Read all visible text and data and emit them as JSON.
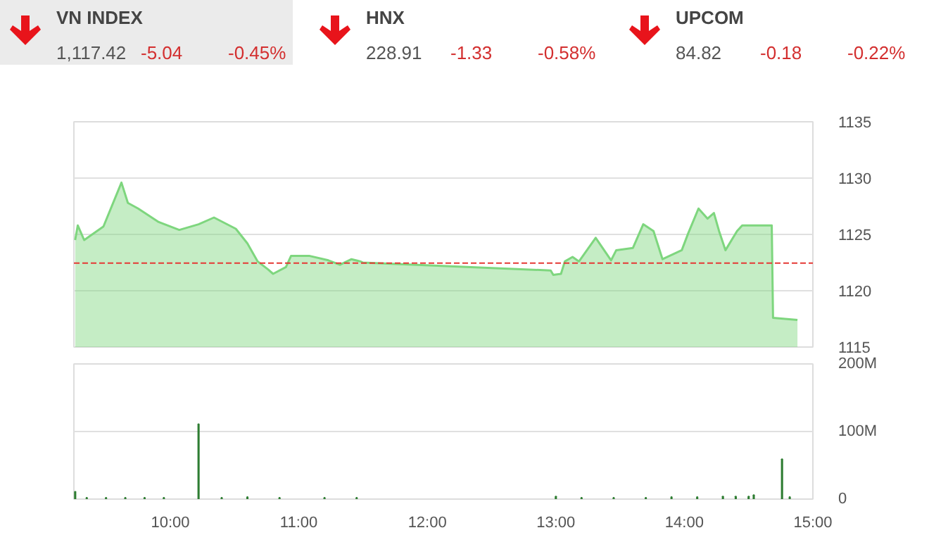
{
  "chart_data": [
    {
      "type": "other",
      "title": "VN INDEX",
      "annotations": [
        "1,117.42",
        "-5.04",
        "-0.45%"
      ]
    },
    {
      "type": "other",
      "title": "HNX",
      "annotations": [
        "228.91",
        "-1.33",
        "-0.58%"
      ]
    },
    {
      "type": "other",
      "title": "UPCOM",
      "annotations": [
        "84.82",
        "-0.18",
        "-0.22%"
      ]
    },
    {
      "type": "area",
      "x": [
        9.26,
        9.28,
        9.33,
        9.48,
        9.62,
        9.67,
        9.75,
        9.91,
        10.07,
        10.22,
        10.34,
        10.51,
        10.6,
        10.68,
        10.76,
        10.8,
        10.9,
        10.94,
        11.08,
        11.23,
        11.32,
        11.41,
        11.48,
        11.5,
        12.96,
        12.98,
        13.04,
        13.07,
        13.13,
        13.18,
        13.31,
        13.43,
        13.47,
        13.6,
        13.68,
        13.76,
        13.83,
        13.98,
        14.03,
        14.11,
        14.18,
        14.23,
        14.27,
        14.32,
        14.41,
        14.45,
        14.68,
        14.69,
        14.88
      ],
      "series": [
        {
          "color": "#7ed67e",
          "values": [
            1124.5,
            1125.8,
            1124.5,
            1125.7,
            1129.6,
            1127.8,
            1127.3,
            1126.1,
            1125.4,
            1125.9,
            1126.5,
            1125.5,
            1124.2,
            1122.6,
            1121.9,
            1121.5,
            1122.1,
            1123.1,
            1123.1,
            1122.7,
            1122.3,
            1122.8,
            1122.6,
            1122.5,
            1121.8,
            1121.4,
            1121.5,
            1122.6,
            1123.0,
            1122.6,
            1124.7,
            1122.7,
            1123.6,
            1123.8,
            1125.9,
            1125.3,
            1122.8,
            1123.6,
            1125.1,
            1127.3,
            1126.4,
            1126.9,
            1125.3,
            1123.6,
            1125.3,
            1125.8,
            1125.8,
            1117.6,
            1117.4
          ]
        }
      ],
      "xlim": [
        9.25,
        15.0
      ],
      "ylim": [
        1115,
        1135
      ],
      "yticks": [
        1115,
        1120,
        1125,
        1130,
        1135
      ],
      "ref_lines": [
        {
          "axis": "y",
          "value": 1122.46,
          "color": "#e53935",
          "line_style": "dashed"
        }
      ],
      "grid": "y",
      "tick_labels": "y"
    },
    {
      "type": "bar",
      "x": [
        9.26,
        9.35,
        9.5,
        9.65,
        9.8,
        9.95,
        10.22,
        10.4,
        10.6,
        10.85,
        11.2,
        11.45,
        13.0,
        13.2,
        13.45,
        13.7,
        13.9,
        14.1,
        14.3,
        14.4,
        14.5,
        14.54,
        14.76,
        14.82
      ],
      "series": [
        {
          "color": "#2e7d32",
          "values": [
            11000000,
            2000000,
            2000000,
            2000000,
            2000000,
            2000000,
            111000000,
            2000000,
            3000000,
            2000000,
            2000000,
            2000000,
            4000000,
            2000000,
            2000000,
            2000000,
            3000000,
            3000000,
            4000000,
            4000000,
            4000000,
            6000000,
            59000000,
            3000000
          ]
        }
      ],
      "xlim": [
        9.25,
        15.0
      ],
      "ylim": [
        0,
        200000000
      ],
      "yticks": [
        {
          "value": 0,
          "label": "0"
        },
        {
          "value": 100000000,
          "label": "100M"
        },
        {
          "value": 200000000,
          "label": "200M"
        }
      ],
      "xticks": [
        {
          "value": 10,
          "label": "10:00"
        },
        {
          "value": 11,
          "label": "11:00"
        },
        {
          "value": 12,
          "label": "12:00"
        },
        {
          "value": 13,
          "label": "13:00"
        },
        {
          "value": 14,
          "label": "14:00"
        },
        {
          "value": 15,
          "label": "15:00"
        }
      ],
      "grid": "y"
    }
  ]
}
